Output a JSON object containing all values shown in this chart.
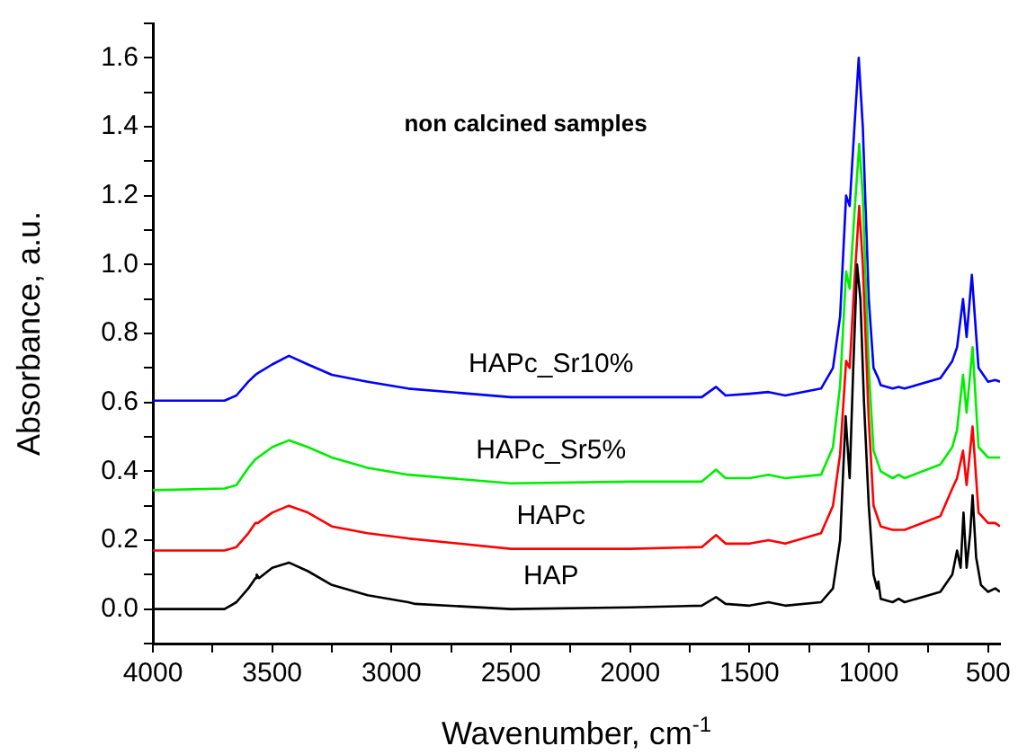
{
  "chart_data": {
    "type": "line",
    "xlabel": "Wavenumber, cm$^{-1}$",
    "ylabel": "Absorbance, a.u.",
    "annotations": [
      "non calcined samples"
    ],
    "xlim": [
      4000,
      450
    ],
    "ylim": [
      -0.1,
      1.7
    ],
    "xticks": [
      4000,
      {
        "value": 3750,
        "label": null
      },
      3500,
      {
        "value": 3250,
        "label": null
      },
      3000,
      {
        "value": 2750,
        "label": null
      },
      2500,
      {
        "value": 2250,
        "label": null
      },
      2000,
      {
        "value": 1750,
        "label": null
      },
      1500,
      {
        "value": 1250,
        "label": null
      },
      1000,
      {
        "value": 750,
        "label": null
      },
      500
    ],
    "yticks": [
      {
        "value": -0.1,
        "label": null
      },
      {
        "value": 0,
        "label": "0.0"
      },
      {
        "value": 0.1,
        "label": null
      },
      {
        "value": 0.2,
        "label": "0.2"
      },
      {
        "value": 0.3,
        "label": null
      },
      {
        "value": 0.4,
        "label": "0.4"
      },
      {
        "value": 0.5,
        "label": null
      },
      {
        "value": 0.6,
        "label": "0.6"
      },
      {
        "value": 0.7,
        "label": null
      },
      {
        "value": 0.8,
        "label": "0.8"
      },
      {
        "value": 0.9,
        "label": null
      },
      {
        "value": 1.0,
        "label": "1.0"
      },
      {
        "value": 1.1,
        "label": null
      },
      {
        "value": 1.2,
        "label": "1.2"
      },
      {
        "value": 1.3,
        "label": null
      },
      {
        "value": 1.4,
        "label": "1.4"
      },
      {
        "value": 1.5,
        "label": null
      },
      {
        "value": 1.6,
        "label": "1.6"
      },
      {
        "value": 1.7,
        "label": null
      }
    ],
    "grid": false,
    "legend": false,
    "marker": "none",
    "line_style": "solid",
    "series": [
      {
        "name": "HAP",
        "color": "#000000",
        "x": [
          4000,
          3700,
          3650,
          3600,
          3570,
          3565,
          3555,
          3500,
          3430,
          3350,
          3250,
          3100,
          2930,
          2900,
          2500,
          2000,
          1700,
          1640,
          1600,
          1500,
          1420,
          1350,
          1200,
          1150,
          1120,
          1097,
          1080,
          1065,
          1049,
          1035,
          1020,
          1000,
          980,
          965,
          960,
          950,
          900,
          875,
          850,
          700,
          650,
          630,
          615,
          603,
          590,
          575,
          565,
          550,
          530,
          500,
          470,
          450
        ],
        "values": [
          0.0,
          0.0,
          0.02,
          0.06,
          0.09,
          0.1,
          0.09,
          0.12,
          0.135,
          0.11,
          0.07,
          0.04,
          0.02,
          0.015,
          0.0,
          0.005,
          0.01,
          0.035,
          0.015,
          0.01,
          0.02,
          0.01,
          0.02,
          0.06,
          0.2,
          0.56,
          0.38,
          0.7,
          1.0,
          0.9,
          0.6,
          0.3,
          0.1,
          0.06,
          0.08,
          0.03,
          0.02,
          0.03,
          0.02,
          0.05,
          0.1,
          0.17,
          0.12,
          0.28,
          0.12,
          0.22,
          0.33,
          0.15,
          0.07,
          0.05,
          0.06,
          0.05
        ]
      },
      {
        "name": "HAPc",
        "color": "#ff0000",
        "x": [
          4000,
          3700,
          3650,
          3600,
          3570,
          3560,
          3500,
          3430,
          3350,
          3250,
          3100,
          2930,
          2500,
          2000,
          1700,
          1640,
          1600,
          1500,
          1420,
          1350,
          1200,
          1150,
          1120,
          1095,
          1080,
          1060,
          1040,
          1025,
          1000,
          980,
          960,
          950,
          900,
          875,
          850,
          700,
          650,
          630,
          605,
          590,
          565,
          540,
          500,
          470,
          450
        ],
        "values": [
          0.17,
          0.17,
          0.18,
          0.22,
          0.25,
          0.25,
          0.28,
          0.3,
          0.28,
          0.24,
          0.22,
          0.205,
          0.175,
          0.175,
          0.18,
          0.215,
          0.19,
          0.19,
          0.2,
          0.19,
          0.22,
          0.3,
          0.45,
          0.72,
          0.7,
          0.95,
          1.17,
          1.0,
          0.55,
          0.3,
          0.26,
          0.24,
          0.23,
          0.23,
          0.23,
          0.27,
          0.35,
          0.38,
          0.46,
          0.36,
          0.53,
          0.28,
          0.25,
          0.25,
          0.24
        ]
      },
      {
        "name": "HAPc_Sr5%",
        "color": "#00ee00",
        "x": [
          4000,
          3700,
          3650,
          3600,
          3570,
          3560,
          3500,
          3430,
          3350,
          3250,
          3100,
          2930,
          2500,
          2000,
          1700,
          1640,
          1600,
          1500,
          1420,
          1350,
          1200,
          1150,
          1120,
          1095,
          1080,
          1060,
          1040,
          1025,
          1000,
          980,
          960,
          950,
          900,
          875,
          850,
          700,
          650,
          630,
          605,
          590,
          565,
          540,
          500,
          470,
          450
        ],
        "values": [
          0.345,
          0.35,
          0.36,
          0.41,
          0.435,
          0.44,
          0.47,
          0.49,
          0.47,
          0.44,
          0.41,
          0.39,
          0.365,
          0.37,
          0.37,
          0.405,
          0.38,
          0.38,
          0.39,
          0.38,
          0.39,
          0.47,
          0.65,
          0.98,
          0.93,
          1.15,
          1.35,
          1.2,
          0.7,
          0.46,
          0.42,
          0.4,
          0.38,
          0.39,
          0.38,
          0.42,
          0.47,
          0.52,
          0.68,
          0.57,
          0.76,
          0.47,
          0.44,
          0.44,
          0.44
        ]
      },
      {
        "name": "HAPc_Sr10%",
        "color": "#0000ff",
        "x": [
          4000,
          3700,
          3650,
          3600,
          3570,
          3560,
          3500,
          3430,
          3350,
          3250,
          3100,
          2930,
          2500,
          2000,
          1700,
          1640,
          1600,
          1500,
          1420,
          1350,
          1200,
          1150,
          1120,
          1095,
          1080,
          1060,
          1042,
          1025,
          1000,
          980,
          960,
          950,
          900,
          875,
          850,
          700,
          650,
          630,
          605,
          590,
          568,
          540,
          500,
          470,
          450
        ],
        "values": [
          0.605,
          0.605,
          0.62,
          0.66,
          0.68,
          0.685,
          0.71,
          0.735,
          0.71,
          0.68,
          0.66,
          0.64,
          0.615,
          0.615,
          0.615,
          0.645,
          0.62,
          0.625,
          0.63,
          0.62,
          0.64,
          0.7,
          0.85,
          1.2,
          1.17,
          1.4,
          1.6,
          1.4,
          0.9,
          0.7,
          0.67,
          0.65,
          0.64,
          0.645,
          0.64,
          0.67,
          0.72,
          0.76,
          0.9,
          0.79,
          0.97,
          0.7,
          0.66,
          0.665,
          0.66
        ]
      }
    ]
  }
}
